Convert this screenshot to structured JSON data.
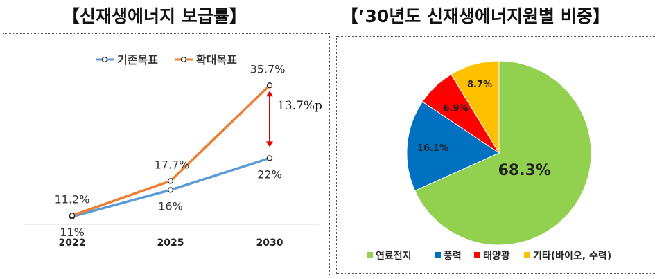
{
  "titles": {
    "left": "【신재생에너지 보급률】",
    "right": "【’30년도 신재생에너지원별 비중】"
  },
  "chart_data": [
    {
      "type": "line",
      "title": "",
      "categories": [
        "2022",
        "2025",
        "2030"
      ],
      "series": [
        {
          "name": "기존목표",
          "values": [
            11,
            16,
            22
          ],
          "labels": [
            "11%",
            "16%",
            "22%"
          ],
          "color": "#5B9BD5"
        },
        {
          "name": "확대목표",
          "values": [
            11.2,
            17.7,
            35.7
          ],
          "labels": [
            "11.2%",
            "17.7%",
            "35.7%"
          ],
          "color": "#ED7D31"
        }
      ],
      "annotation": {
        "text": "13.7%p",
        "from": 22,
        "to": 35.7,
        "category": "2030",
        "color": "#E00000"
      },
      "legend_position": "top-center",
      "grid": false
    },
    {
      "type": "pie",
      "title": "",
      "slices": [
        {
          "name": "연료전지",
          "value": 68.3,
          "label": "68.3%",
          "color": "#92D050"
        },
        {
          "name": "풍력",
          "value": 16.1,
          "label": "16.1%",
          "color": "#0070C0"
        },
        {
          "name": "태양광",
          "value": 6.9,
          "label": "6.9%",
          "color": "#FF0000"
        },
        {
          "name": "기타(바이오, 수력)",
          "value": 8.7,
          "label": "8.7%",
          "color": "#FFC000"
        }
      ],
      "legend_position": "bottom"
    }
  ]
}
